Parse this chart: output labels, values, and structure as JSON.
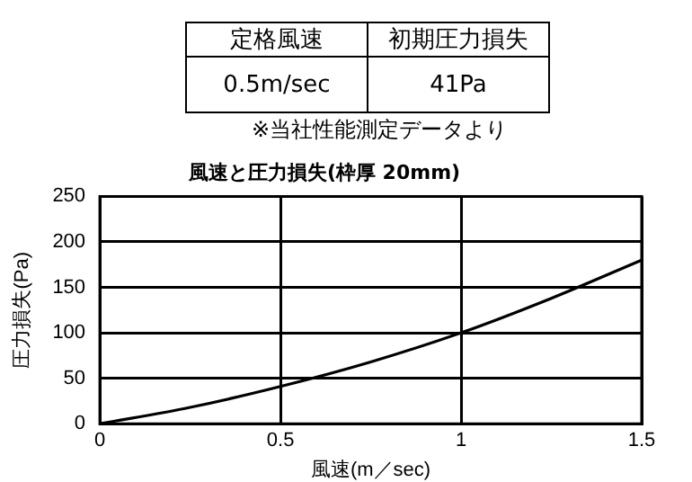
{
  "chart_data": {
    "type": "line",
    "title": "風速と圧力損失(枠厚 20mm)",
    "xlabel": "風速(m／sec)",
    "ylabel": "圧力損失(Pa)",
    "annotations": [
      "定格風速",
      "初期圧力損失",
      "0.5m/sec",
      "41Pa",
      "※当社性能測定データより"
    ],
    "x": [
      0,
      0.25,
      0.5,
      0.75,
      1,
      1.25,
      1.5
    ],
    "series": [
      {
        "color": "#000000",
        "values": [
          0,
          18,
          41,
          68,
          100,
          138,
          180
        ]
      }
    ],
    "xlim": [
      0,
      1.5
    ],
    "xticks": [
      0,
      0.5,
      1,
      1.5
    ],
    "ylim": [
      0,
      250
    ],
    "yticks": [
      0,
      50,
      100,
      150,
      200,
      250
    ],
    "grid": true,
    "legend": false,
    "marker": "none",
    "line_style": "solid"
  }
}
